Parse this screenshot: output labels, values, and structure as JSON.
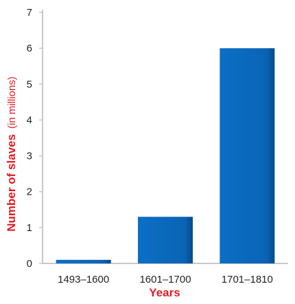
{
  "chart_data": {
    "type": "bar",
    "categories": [
      "1493–1600",
      "1601–1700",
      "1701–1810"
    ],
    "values": [
      0.1,
      1.3,
      6.0
    ],
    "xlabel": "Years",
    "ylabel_main": "Number of slaves",
    "ylabel_unit": "(in millions)",
    "ylim": [
      0,
      7
    ],
    "yticks": [
      "0",
      "1",
      "2",
      "3",
      "4",
      "5",
      "6",
      "7"
    ],
    "grid": false,
    "colors": {
      "bar": "#0a64b4",
      "bar_dark": "#064a8a",
      "label": "#e31b23",
      "axis": "#c8c8c8"
    }
  }
}
